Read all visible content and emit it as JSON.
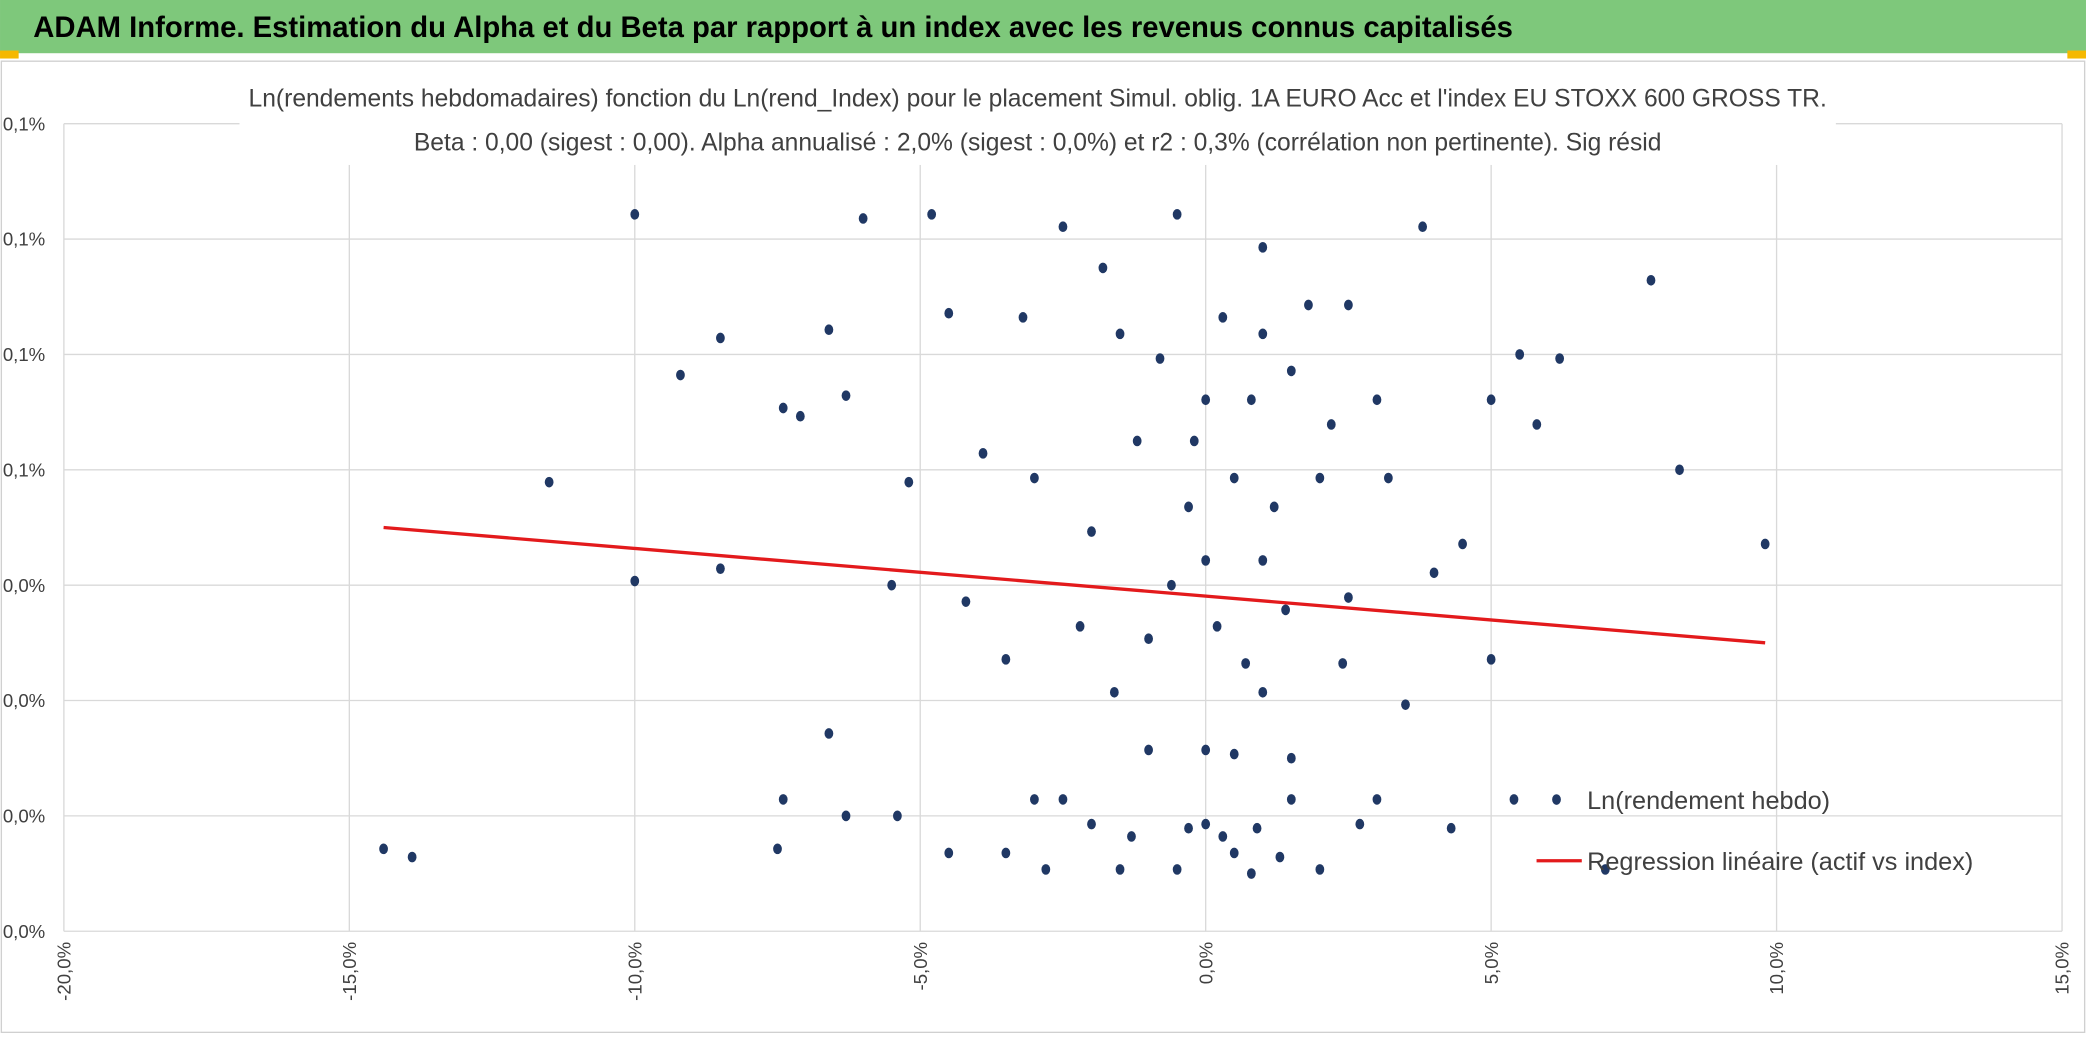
{
  "header": {
    "title": "ADAM Informe. Estimation du Alpha et du Beta par rapport à un index avec les revenus connus capitalisés"
  },
  "chart_data": {
    "type": "scatter",
    "title": "Ln(rendements hebdomadaires) fonction du Ln(rend_Index) pour le placement Simul. oblig. 1A EURO Acc et l'index EU STOXX 600 GROSS TR.",
    "subtitle": "Beta : 0,00 (sigest : 0,00). Alpha annualisé : 2,0% (sigest : 0,0%) et r2 : 0,3% (corrélation non pertinente). Sig résid",
    "xlim": [
      -20,
      15
    ],
    "xticks": [
      {
        "value": -20,
        "label": "-20,0%"
      },
      {
        "value": -15,
        "label": "-15,0%"
      },
      {
        "value": -10,
        "label": "-10,0%"
      },
      {
        "value": -5,
        "label": "-5,0%"
      },
      {
        "value": 0,
        "label": "0,0%"
      },
      {
        "value": 5,
        "label": "5,0%"
      },
      {
        "value": 10,
        "label": "10,0%"
      },
      {
        "value": 15,
        "label": "15,0%"
      }
    ],
    "ylim": [
      -0.048,
      0.148
    ],
    "yticks": [
      {
        "value": -0.048,
        "label": "0,0%"
      },
      {
        "value": -0.02,
        "label": "0,0%"
      },
      {
        "value": 0.008,
        "label": "0,0%"
      },
      {
        "value": 0.036,
        "label": "0,0%"
      },
      {
        "value": 0.064,
        "label": "0,1%"
      },
      {
        "value": 0.092,
        "label": "0,1%"
      },
      {
        "value": 0.12,
        "label": "0,1%"
      },
      {
        "value": 0.148,
        "label": "0,1%"
      }
    ],
    "grid": true,
    "legend": "lower-right",
    "series": [
      {
        "name": "Ln(rendement hebdo)",
        "color": "#203864",
        "x": [
          -14.4,
          -13.9,
          -11.5,
          -10.0,
          -10.0,
          -9.2,
          -8.5,
          -8.5,
          -7.5,
          -7.4,
          -7.4,
          -7.1,
          -6.6,
          -6.6,
          -6.3,
          -6.3,
          -6.0,
          -5.5,
          -5.4,
          -5.2,
          -4.8,
          -4.5,
          -4.5,
          -4.2,
          -3.9,
          -3.5,
          -3.0,
          -2.8,
          -2.0,
          -1.5,
          -1.0,
          -0.5,
          0,
          0,
          0,
          0,
          0.5,
          0.5,
          1,
          1,
          1,
          1.5,
          1.5,
          2,
          2,
          2.5,
          2.5,
          3,
          3,
          3.5,
          3.8,
          4,
          4.3,
          4.5,
          5,
          5,
          5.4,
          5.5,
          5.8,
          6.2,
          7,
          7.8,
          8.3,
          9.8,
          -3.2,
          -2.5,
          -1.8,
          -1.2,
          -0.8,
          -0.3,
          0.3,
          0.8,
          1.2,
          1.8,
          2.2,
          -2.2,
          -1.6,
          -0.6,
          0.2,
          0.7,
          1.4,
          2.4,
          -3.0,
          -1.0,
          0.5,
          1.5,
          -2.0,
          -1.3,
          -0.3,
          0.3,
          0.9,
          1.3,
          -0.5,
          0.8,
          -1.5,
          2.7,
          -3.5,
          -2.5,
          3.2,
          -0.2,
          1.0
        ],
        "values": [
          -0.028,
          -0.03,
          0.061,
          0.126,
          0.037,
          0.087,
          0.096,
          0.04,
          -0.028,
          -0.016,
          0.079,
          0.077,
          0.098,
          0.0,
          0.082,
          -0.02,
          0.125,
          0.036,
          -0.02,
          0.061,
          0.126,
          0.102,
          -0.029,
          0.032,
          0.068,
          0.018,
          -0.016,
          -0.033,
          0.049,
          0.097,
          0.023,
          0.126,
          0.081,
          0.042,
          -0.004,
          -0.022,
          0.062,
          -0.029,
          0.118,
          0.042,
          0.01,
          0.088,
          -0.016,
          0.062,
          -0.033,
          0.104,
          0.033,
          0.081,
          -0.016,
          0.007,
          0.123,
          0.039,
          -0.023,
          0.046,
          0.081,
          0.018,
          -0.016,
          0.092,
          0.075,
          0.091,
          -0.033,
          0.11,
          0.064,
          0.046,
          0.101,
          0.123,
          0.113,
          0.071,
          0.091,
          0.055,
          0.101,
          0.081,
          0.055,
          0.104,
          0.075,
          0.026,
          0.01,
          0.036,
          0.026,
          0.017,
          0.03,
          0.017,
          0.062,
          -0.004,
          -0.005,
          -0.006,
          -0.022,
          -0.025,
          -0.023,
          -0.025,
          -0.023,
          -0.03,
          -0.033,
          -0.034,
          -0.033,
          -0.022,
          -0.029,
          -0.016,
          0.062,
          0.071,
          0.097
        ]
      },
      {
        "name": "Regression linéaire (actif vs index)",
        "color": "#e31a1c",
        "type": "line",
        "x": [
          -14.4,
          9.8
        ],
        "values": [
          0.05,
          0.022
        ]
      }
    ]
  }
}
